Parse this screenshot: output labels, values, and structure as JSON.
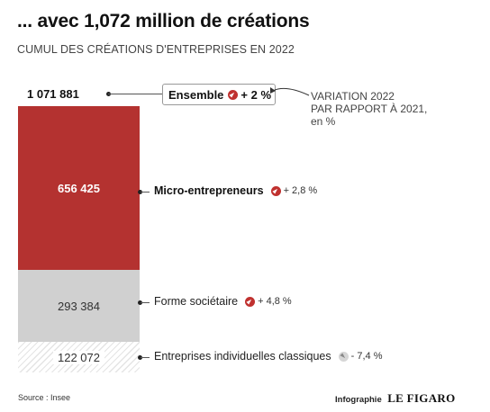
{
  "header": {
    "title": "... avec 1,072 million de créations",
    "subtitle": "CUMUL DES CRÉATIONS D'ENTREPRISES EN 2022"
  },
  "chart_data": {
    "type": "bar",
    "stacked": true,
    "total": {
      "label": "Ensemble",
      "value_label": "1 071 881",
      "value": 1071881,
      "change_label": "+ 2 %",
      "change_direction": "up"
    },
    "segments": [
      {
        "label": "Micro-entrepreneurs",
        "value": 656425,
        "value_label": "656 425",
        "change_label": "+ 2,8 %",
        "change_direction": "up",
        "color": "#b43230"
      },
      {
        "label": "Forme sociétaire",
        "value": 293384,
        "value_label": "293 384",
        "change_label": "+ 4,8 %",
        "change_direction": "up",
        "color": "#d0d0d0"
      },
      {
        "label": "Entreprises individuelles classiques",
        "value": 122072,
        "value_label": "122 072",
        "change_label": "- 7,4 %",
        "change_direction": "down",
        "color": "#e4e4e4"
      }
    ],
    "annotation": [
      "VARIATION 2022",
      "PAR RAPPORT À 2021,",
      "en %"
    ]
  },
  "footer": {
    "source": "Source : Insee",
    "credit_prefix": "Infographie",
    "credit_brand": "LE FIGARO"
  },
  "colors": {
    "accent": "#b43230",
    "neutral": "#d0d0d0",
    "hatch": "#e4e4e4"
  }
}
